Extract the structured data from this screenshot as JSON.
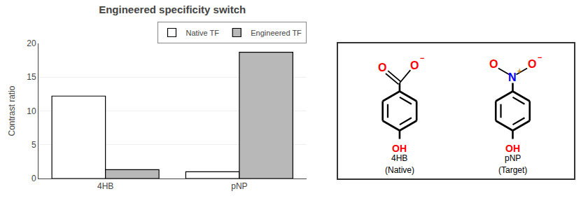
{
  "chart_data": {
    "type": "bar",
    "title": "Engineered specificity switch",
    "ylabel": "Contrast ratio",
    "categories": [
      "4HB",
      "pNP"
    ],
    "series": [
      {
        "name": "Native TF",
        "color": "#ffffff",
        "values": [
          12.2,
          1.0
        ]
      },
      {
        "name": "Engineered TF",
        "color": "#b8b8b8",
        "values": [
          1.3,
          18.7
        ]
      }
    ],
    "ylim": [
      0,
      20
    ],
    "yticks": [
      0,
      5,
      10,
      15,
      20
    ],
    "grid": true,
    "legend": "upper right",
    "annotations": [
      {
        "text": "O",
        "color": "red"
      },
      {
        "text": "O",
        "color": "red"
      },
      {
        "text": "−",
        "color": "red"
      },
      {
        "text": "OH",
        "color": "red"
      },
      {
        "text": "4HB",
        "color": "black"
      },
      {
        "text": "(Native)",
        "color": "black"
      },
      {
        "text": "N",
        "color": "blue"
      },
      {
        "text": "+",
        "color": "#cc8800"
      },
      {
        "text": "O",
        "color": "red"
      },
      {
        "text": "O",
        "color": "red"
      },
      {
        "text": "−",
        "color": "red"
      },
      {
        "text": "OH",
        "color": "red"
      },
      {
        "text": "pNP",
        "color": "black"
      },
      {
        "text": "(Target)",
        "color": "black"
      }
    ]
  }
}
